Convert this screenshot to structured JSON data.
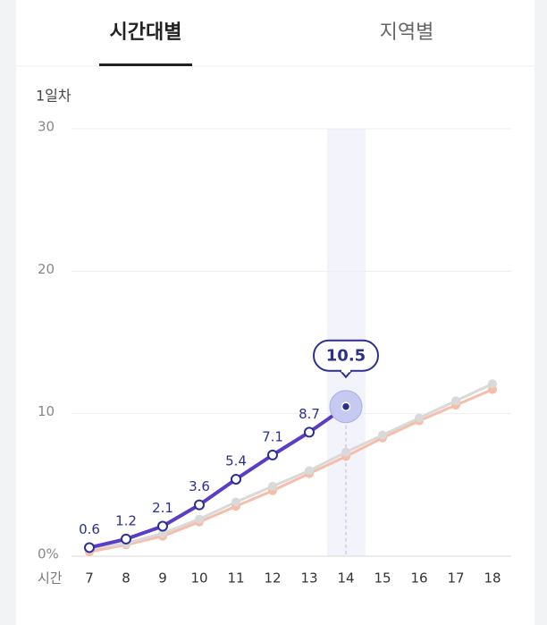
{
  "tabs": [
    "시간대별",
    "지역별"
  ],
  "chart_data": {
    "type": "line",
    "subtitle": "1일차",
    "xlabel": "시간",
    "x": [
      7,
      8,
      9,
      10,
      11,
      12,
      13,
      14,
      15,
      16,
      17,
      18
    ],
    "xlim": [
      7,
      18
    ],
    "ylim": [
      0,
      30
    ],
    "yticks": [
      {
        "value": 0,
        "label": "0%"
      },
      10,
      20,
      30
    ],
    "grid": true,
    "highlight": 14,
    "series": [
      {
        "color": "#5b3cc4",
        "values": [
          0.6,
          1.2,
          2.1,
          3.6,
          5.4,
          7.1,
          8.7,
          10.5,
          null,
          null,
          null,
          null
        ]
      },
      {
        "color": "#d9d9d9",
        "values": [
          0.5,
          0.9,
          1.6,
          2.6,
          3.8,
          4.9,
          6.0,
          7.3,
          8.5,
          9.7,
          10.9,
          12.1
        ]
      },
      {
        "color": "#f6bda9",
        "values": [
          0.3,
          0.8,
          1.4,
          2.4,
          3.5,
          4.6,
          5.8,
          7.0,
          8.3,
          9.5,
          10.6,
          11.7
        ]
      }
    ]
  }
}
